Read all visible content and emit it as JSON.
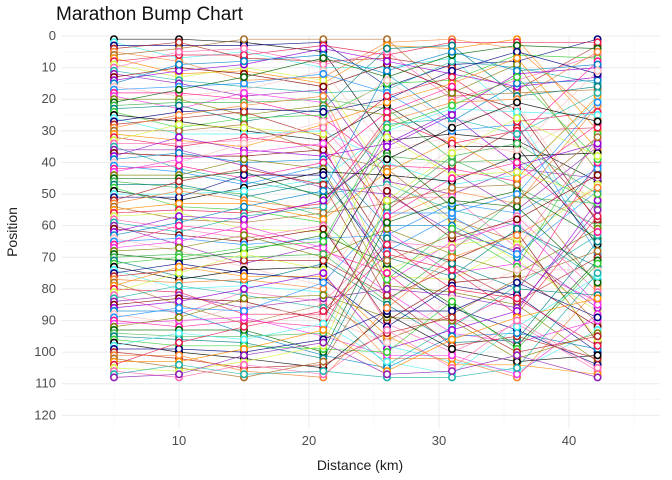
{
  "chart_data": {
    "type": "line",
    "title": "Marathon Bump Chart",
    "xlabel": "Distance (km)",
    "ylabel": "Position",
    "x_checkpoints": [
      5,
      10,
      15,
      21.1,
      26,
      31,
      36,
      42.2
    ],
    "xlim": [
      1,
      47
    ],
    "ylim": [
      0,
      124
    ],
    "y_reversed": true,
    "x_ticks": [
      10,
      20,
      30,
      40
    ],
    "y_ticks": [
      0,
      10,
      20,
      30,
      40,
      50,
      60,
      70,
      80,
      90,
      100,
      110,
      120
    ],
    "n_series": 108,
    "y_range": [
      1,
      108
    ],
    "grid": true,
    "legend": "none",
    "marker": "open-circle"
  },
  "palette": [
    "#000000",
    "#e6194b",
    "#0082c8",
    "#3cb44b",
    "#f58231",
    "#911eb4",
    "#f032e6",
    "#46f0f0",
    "#d2f53c",
    "#fabebe",
    "#008080",
    "#aa6e28",
    "#800000",
    "#808000",
    "#000080",
    "#ff69b4",
    "#1e90ff",
    "#32cd32",
    "#ff8c00",
    "#9400d3",
    "#006400",
    "#b22222",
    "#20b2aa",
    "#ff1493"
  ]
}
